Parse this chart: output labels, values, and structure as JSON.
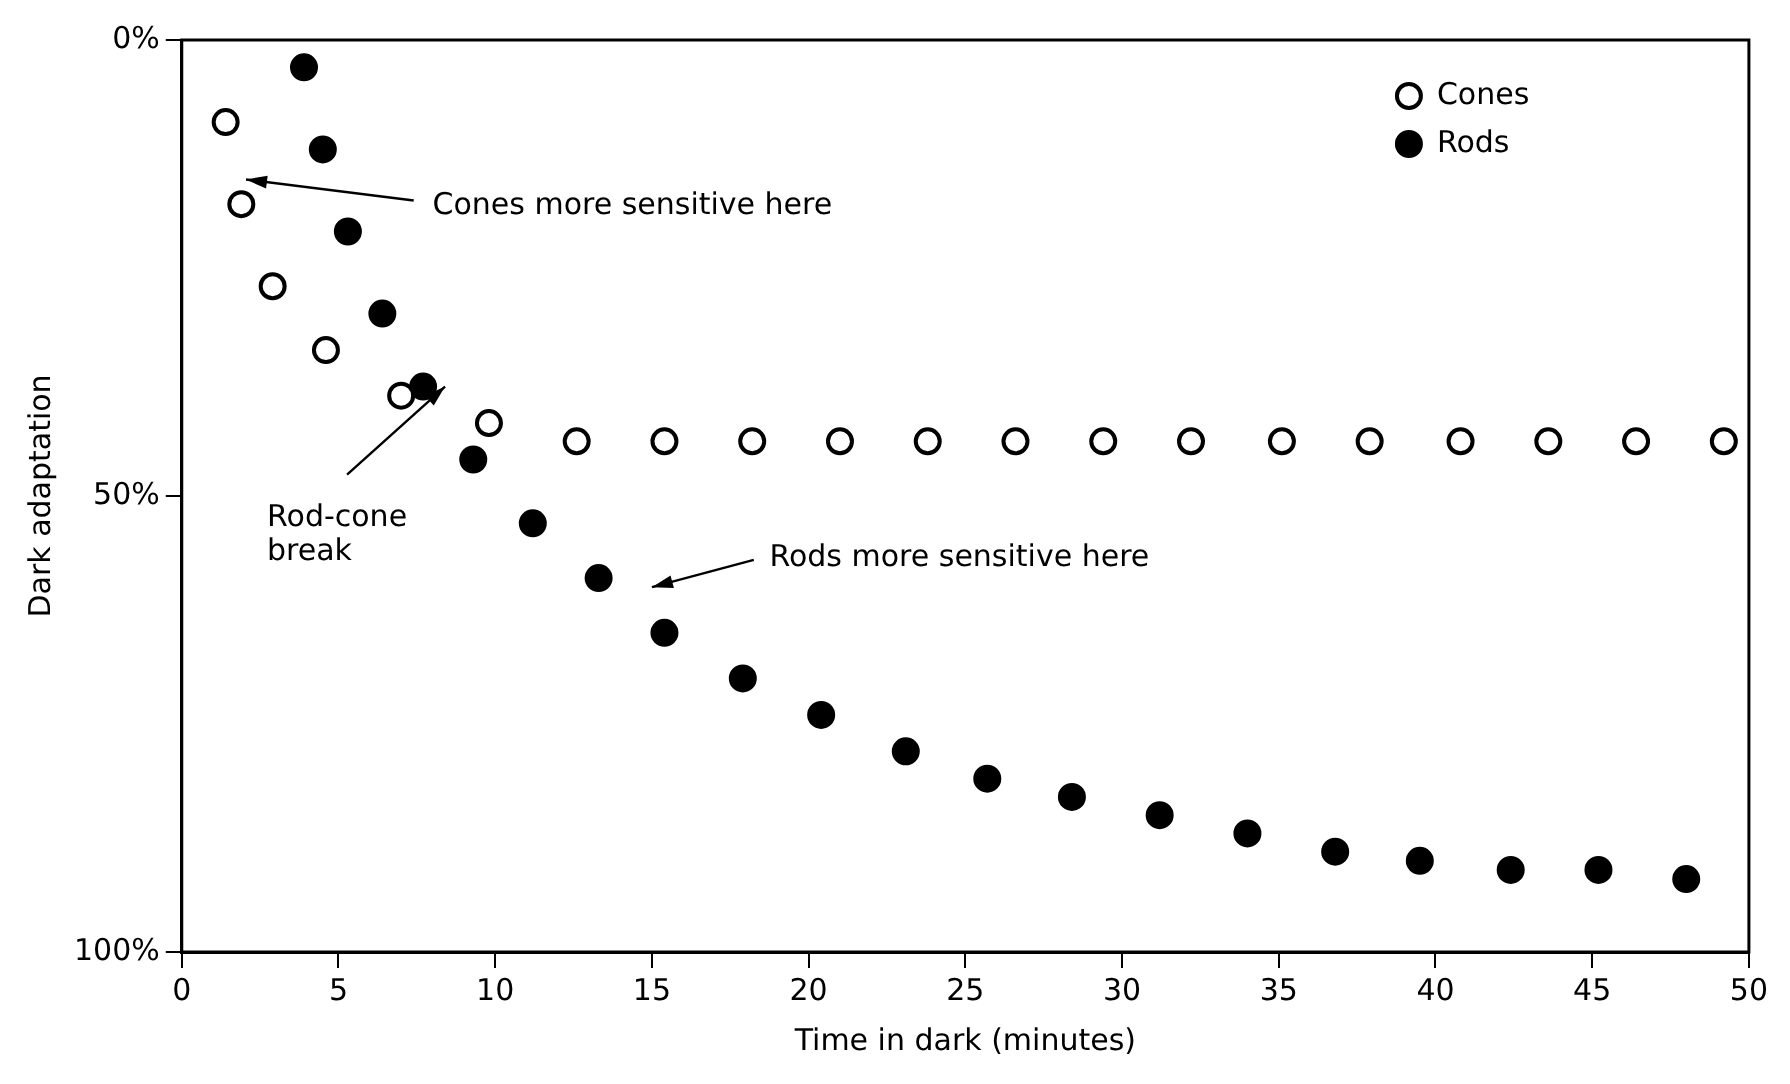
{
  "chart_data": {
    "type": "scatter",
    "xlabel": "Time in dark (minutes)",
    "ylabel": "Dark adaptation",
    "xlim": [
      0,
      50
    ],
    "xticks": [
      0,
      5,
      10,
      15,
      20,
      25,
      30,
      35,
      40,
      45,
      50
    ],
    "ylim": [
      100,
      0
    ],
    "yticks": [
      {
        "value": 0,
        "label": "0%"
      },
      {
        "value": 50,
        "label": "50%"
      },
      {
        "value": 100,
        "label": "100%"
      }
    ],
    "grid": false,
    "legend": "top right",
    "marker": "circle",
    "series": [
      {
        "name": "Cones",
        "color": "#000000",
        "x": [
          1.4,
          1.9,
          2.9,
          4.6,
          7.0,
          9.8,
          12.6,
          15.4,
          18.2,
          21.0,
          23.8,
          26.6,
          29.4,
          32.2,
          35.1,
          37.9,
          40.8,
          43.6,
          46.4,
          49.2
        ],
        "values": [
          9,
          18,
          27,
          34,
          39,
          42,
          44,
          44,
          44,
          44,
          44,
          44,
          44,
          44,
          44,
          44,
          44,
          44,
          44,
          44
        ]
      },
      {
        "name": "Rods",
        "color": "#000000",
        "x": [
          3.9,
          4.5,
          5.3,
          6.4,
          7.7,
          9.3,
          11.2,
          13.3,
          15.4,
          17.9,
          20.4,
          23.1,
          25.7,
          28.4,
          31.2,
          34.0,
          36.8,
          39.5,
          42.4,
          45.2,
          48.0
        ],
        "values": [
          3,
          12,
          21,
          30,
          38,
          46,
          53,
          59,
          65,
          70,
          74,
          78,
          81,
          83,
          85,
          87,
          89,
          90,
          91,
          91,
          92
        ]
      }
    ],
    "annotations": [
      "Cones more sensitive here",
      {
        "text": "Rod-cone break",
        "x": 8.4,
        "y": 38
      },
      "Rods more sensitive here"
    ]
  }
}
